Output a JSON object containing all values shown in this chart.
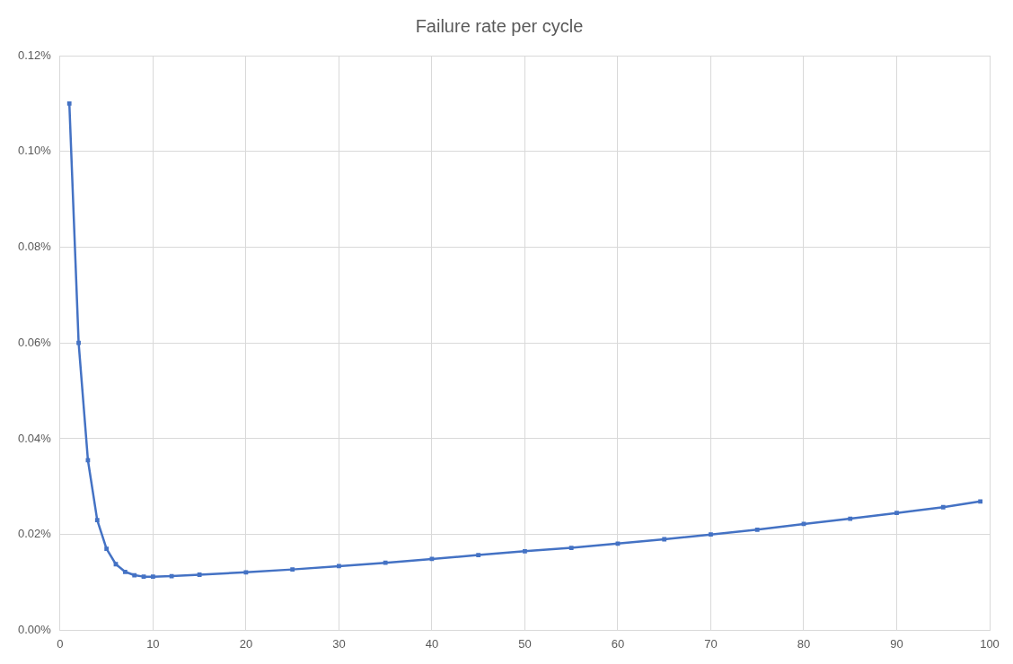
{
  "chart_data": {
    "type": "line",
    "title": "Failure rate per cycle",
    "x": [
      1,
      2,
      3,
      4,
      5,
      6,
      7,
      8,
      9,
      10,
      12,
      15,
      20,
      25,
      30,
      35,
      40,
      45,
      50,
      55,
      60,
      65,
      70,
      75,
      80,
      85,
      90,
      95,
      99
    ],
    "series": [
      {
        "color": "#4472c4",
        "values": [
          0.11,
          0.06,
          0.0355,
          0.023,
          0.017,
          0.0138,
          0.0122,
          0.0115,
          0.0112,
          0.0112,
          0.0113,
          0.0116,
          0.0121,
          0.0127,
          0.0134,
          0.0141,
          0.0149,
          0.0157,
          0.0165,
          0.0172,
          0.0181,
          0.019,
          0.02,
          0.021,
          0.0222,
          0.0233,
          0.0245,
          0.0257,
          0.0269
        ]
      }
    ],
    "xlim": [
      0,
      100
    ],
    "xticks": [
      0,
      10,
      20,
      30,
      40,
      50,
      60,
      70,
      80,
      90,
      100
    ],
    "ylim": [
      0,
      0.12
    ],
    "yticks": [
      {
        "value": 0,
        "label": "0.00%"
      },
      {
        "value": 0.02,
        "label": "0.02%"
      },
      {
        "value": 0.04,
        "label": "0.04%"
      },
      {
        "value": 0.06,
        "label": "0.06%"
      },
      {
        "value": 0.08,
        "label": "0.08%"
      },
      {
        "value": 0.1,
        "label": "0.10%"
      },
      {
        "value": 0.12,
        "label": "0.12%"
      }
    ],
    "grid": true,
    "legend": false,
    "marker": "square",
    "line_style": "solid"
  }
}
